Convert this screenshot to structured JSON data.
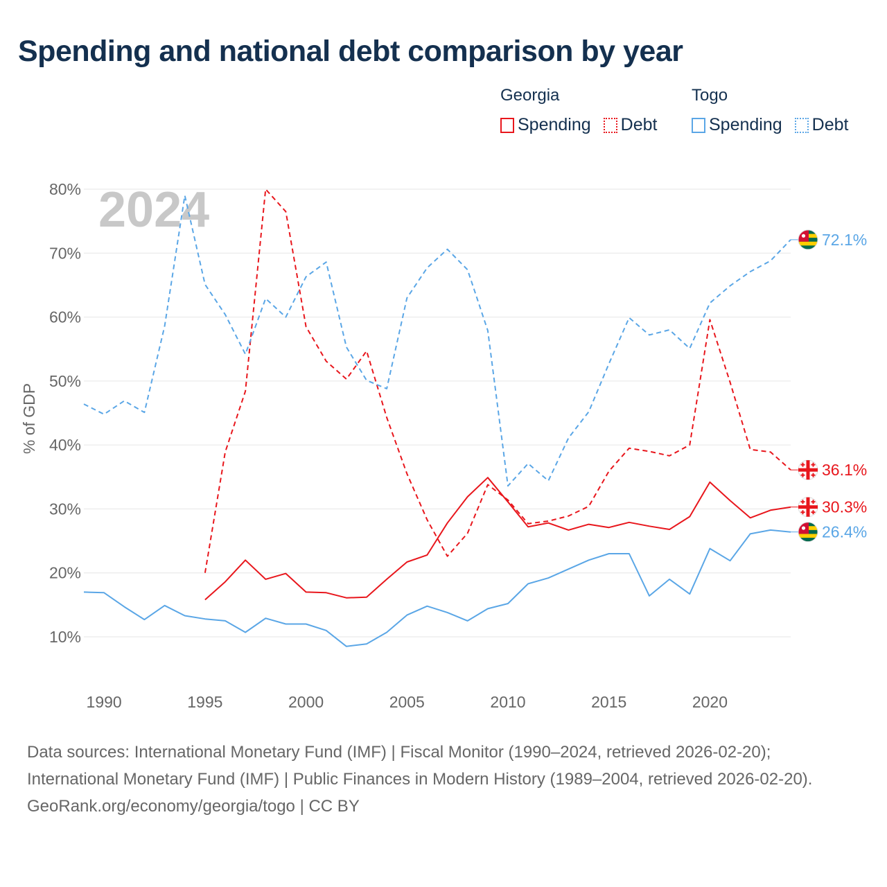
{
  "title": "Spending and national debt comparison by year",
  "legend": {
    "georgia": {
      "name": "Georgia",
      "spending": "Spending",
      "debt": "Debt"
    },
    "togo": {
      "name": "Togo",
      "spending": "Spending",
      "debt": "Debt"
    }
  },
  "colors": {
    "georgia": "#e8161c",
    "togo": "#5aa6e6",
    "text": "#14304f",
    "muted": "#666666",
    "grid": "#e6e6e6"
  },
  "footer": {
    "sources": "Data sources: International Monetary Fund (IMF) | Fiscal Monitor (1990–2024, retrieved 2026-02-20); International Monetary Fund (IMF) | Public Finances in Modern History (1989–2004, retrieved 2026-02-20).",
    "credit": "GeoRank.org/economy/georgia/togo | CC BY"
  },
  "chart_data": {
    "type": "line",
    "title": "Spending and national debt comparison by year",
    "ylabel": "% of GDP",
    "xlabel": "",
    "year_watermark": "2024",
    "ylim": [
      0,
      80
    ],
    "xlim": [
      1989,
      2024
    ],
    "yticks": [
      10,
      20,
      30,
      40,
      50,
      60,
      70,
      80
    ],
    "ytick_labels": [
      "10%",
      "20%",
      "30%",
      "40%",
      "50%",
      "60%",
      "70%",
      "80%"
    ],
    "xticks": [
      1990,
      1995,
      2000,
      2005,
      2010,
      2015,
      2020
    ],
    "series": [
      {
        "name": "Georgia Spending",
        "country": "georgia",
        "style": "solid",
        "end_label": "30.3%",
        "x": [
          1995,
          1996,
          1997,
          1998,
          1999,
          2000,
          2001,
          2002,
          2003,
          2004,
          2005,
          2006,
          2007,
          2008,
          2009,
          2010,
          2011,
          2012,
          2013,
          2014,
          2015,
          2016,
          2017,
          2018,
          2019,
          2020,
          2021,
          2022,
          2023,
          2024
        ],
        "values": [
          15.8,
          18.6,
          22.0,
          19.0,
          19.9,
          17.0,
          16.9,
          16.1,
          16.2,
          19.0,
          21.7,
          22.8,
          27.8,
          31.9,
          34.9,
          31.1,
          27.2,
          27.8,
          26.7,
          27.6,
          27.1,
          27.9,
          27.3,
          26.8,
          28.8,
          34.2,
          31.3,
          28.6,
          29.8,
          30.3
        ]
      },
      {
        "name": "Georgia Debt",
        "country": "georgia",
        "style": "dashed",
        "end_label": "36.1%",
        "x": [
          1995,
          1996,
          1997,
          1998,
          1999,
          2000,
          2001,
          2002,
          2003,
          2004,
          2005,
          2006,
          2007,
          2008,
          2009,
          2010,
          2011,
          2012,
          2013,
          2014,
          2015,
          2016,
          2017,
          2018,
          2019,
          2020,
          2021,
          2022,
          2023,
          2024
        ],
        "values": [
          20.0,
          38.9,
          48.4,
          80.0,
          76.5,
          58.5,
          53.1,
          50.3,
          54.7,
          44.3,
          35.5,
          28.3,
          22.6,
          26.2,
          33.8,
          31.4,
          27.7,
          28.1,
          28.9,
          30.4,
          35.9,
          39.5,
          39.0,
          38.3,
          40.0,
          59.6,
          49.8,
          39.3,
          38.9,
          36.1
        ]
      },
      {
        "name": "Togo Spending",
        "country": "togo",
        "style": "solid",
        "end_label": "26.4%",
        "x": [
          1989,
          1990,
          1991,
          1992,
          1993,
          1994,
          1995,
          1996,
          1997,
          1998,
          1999,
          2000,
          2001,
          2002,
          2003,
          2004,
          2005,
          2006,
          2007,
          2008,
          2009,
          2010,
          2011,
          2012,
          2013,
          2014,
          2015,
          2016,
          2017,
          2018,
          2019,
          2020,
          2021,
          2022,
          2023,
          2024
        ],
        "values": [
          17.0,
          16.9,
          14.7,
          12.7,
          14.9,
          13.3,
          12.8,
          12.5,
          10.7,
          12.9,
          12.0,
          12.0,
          11.0,
          8.5,
          8.9,
          10.7,
          13.4,
          14.8,
          13.8,
          12.5,
          14.4,
          15.2,
          18.3,
          19.2,
          20.6,
          22.0,
          23.0,
          23.0,
          16.4,
          19.0,
          16.7,
          23.8,
          21.9,
          26.1,
          26.7,
          26.4
        ]
      },
      {
        "name": "Togo Debt",
        "country": "togo",
        "style": "dashed",
        "end_label": "72.1%",
        "x": [
          1989,
          1990,
          1991,
          1992,
          1993,
          1994,
          1995,
          1996,
          1997,
          1998,
          1999,
          2000,
          2001,
          2002,
          2003,
          2004,
          2005,
          2006,
          2007,
          2008,
          2009,
          2010,
          2011,
          2012,
          2013,
          2014,
          2015,
          2016,
          2017,
          2018,
          2019,
          2020,
          2021,
          2022,
          2023,
          2024
        ],
        "values": [
          46.4,
          44.8,
          46.9,
          45.1,
          58.6,
          79.0,
          65.1,
          60.4,
          54.2,
          62.9,
          60.0,
          66.3,
          68.6,
          55.3,
          50.1,
          48.8,
          63.0,
          67.7,
          70.6,
          67.4,
          57.9,
          33.6,
          37.1,
          34.4,
          41.1,
          45.2,
          52.7,
          59.9,
          57.2,
          58.0,
          55.1,
          62.2,
          64.9,
          67.1,
          68.8,
          72.1
        ]
      }
    ]
  }
}
